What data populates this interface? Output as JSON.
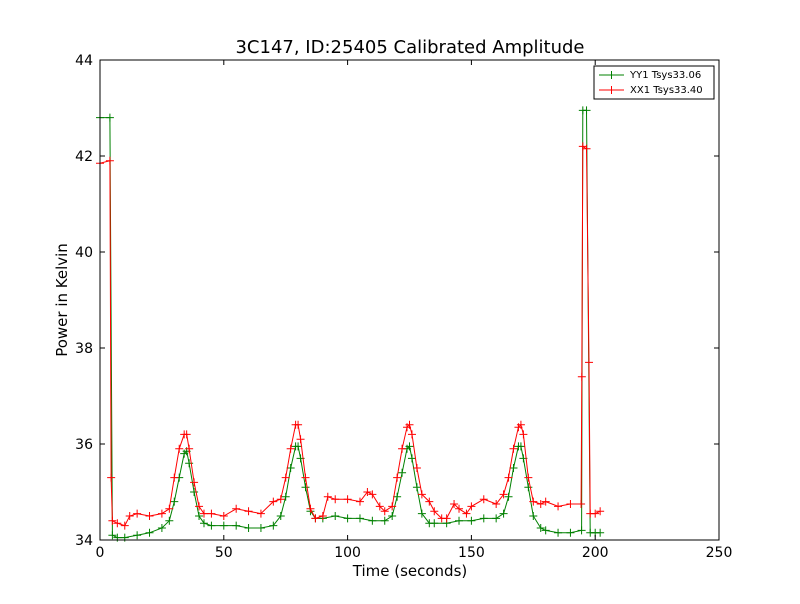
{
  "chart_data": {
    "type": "line",
    "title": "3C147, ID:25405 Calibrated Amplitude",
    "xlabel": "Time (seconds)",
    "ylabel": "Power in Kelvin",
    "xlim": [
      0,
      250
    ],
    "ylim": [
      34,
      44
    ],
    "xticks": [
      "0",
      "50",
      "100",
      "150",
      "200",
      "250"
    ],
    "yticks": [
      "34",
      "36",
      "38",
      "40",
      "42",
      "44"
    ],
    "grid": false,
    "legend_position": "top-right",
    "marker": "plus",
    "series": [
      {
        "name": "YY1 Tsys33.06",
        "color": "#008000",
        "x": [
          0,
          4,
          5,
          7,
          10,
          15,
          20,
          25,
          28,
          30,
          32,
          34,
          35,
          36,
          38,
          40,
          42,
          45,
          50,
          55,
          60,
          65,
          70,
          73,
          75,
          77,
          79,
          80,
          81,
          83,
          85,
          87,
          90,
          95,
          100,
          105,
          110,
          115,
          118,
          120,
          122,
          124,
          125,
          126,
          128,
          130,
          133,
          135,
          140,
          145,
          150,
          155,
          160,
          163,
          165,
          167,
          169,
          170,
          171,
          173,
          175,
          178,
          180,
          185,
          190,
          194.5,
          195,
          196.5,
          198,
          200,
          202
        ],
        "y": [
          42.8,
          42.8,
          34.1,
          34.05,
          34.05,
          34.1,
          34.15,
          34.25,
          34.4,
          34.8,
          35.3,
          35.8,
          35.85,
          35.6,
          35.0,
          34.5,
          34.35,
          34.3,
          34.3,
          34.3,
          34.25,
          34.25,
          34.3,
          34.5,
          34.9,
          35.5,
          35.95,
          35.95,
          35.7,
          35.1,
          34.6,
          34.45,
          34.45,
          34.5,
          34.45,
          34.45,
          34.4,
          34.4,
          34.5,
          34.9,
          35.4,
          35.9,
          35.95,
          35.7,
          35.1,
          34.55,
          34.35,
          34.35,
          34.35,
          34.4,
          34.4,
          34.45,
          34.45,
          34.55,
          34.9,
          35.5,
          35.95,
          35.95,
          35.7,
          35.1,
          34.5,
          34.25,
          34.2,
          34.15,
          34.15,
          34.2,
          42.95,
          42.95,
          34.15,
          34.15,
          34.15
        ]
      },
      {
        "name": "XX1 Tsys33.40",
        "color": "#ff0000",
        "x": [
          0,
          4,
          4.5,
          5,
          7,
          10,
          12,
          15,
          20,
          25,
          28,
          30,
          32,
          34,
          35,
          36,
          38,
          40,
          42,
          45,
          50,
          55,
          60,
          65,
          70,
          73,
          75,
          77,
          79,
          80,
          81,
          83,
          85,
          87,
          90,
          92,
          95,
          100,
          105,
          108,
          110,
          113,
          115,
          118,
          120,
          122,
          124,
          125,
          126,
          128,
          130,
          133,
          135,
          138,
          140,
          143,
          145,
          148,
          150,
          155,
          160,
          163,
          165,
          167,
          169,
          170,
          171,
          173,
          175,
          178,
          180,
          185,
          190,
          194.3,
          194.6,
          195,
          196.5,
          197.5,
          198,
          200,
          202
        ],
        "y": [
          41.85,
          41.9,
          35.3,
          34.4,
          34.35,
          34.3,
          34.5,
          34.55,
          34.5,
          34.55,
          34.65,
          35.3,
          35.9,
          36.2,
          36.2,
          35.9,
          35.2,
          34.7,
          34.55,
          34.55,
          34.5,
          34.65,
          34.6,
          34.55,
          34.8,
          34.85,
          35.3,
          35.9,
          36.4,
          36.4,
          36.1,
          35.3,
          34.65,
          34.45,
          34.5,
          34.9,
          34.85,
          34.85,
          34.8,
          35.0,
          34.95,
          34.7,
          34.6,
          34.7,
          35.3,
          35.9,
          36.35,
          36.4,
          36.2,
          35.5,
          34.95,
          34.8,
          34.6,
          34.45,
          34.45,
          34.75,
          34.65,
          34.55,
          34.7,
          34.85,
          34.75,
          34.95,
          35.3,
          35.9,
          36.35,
          36.4,
          36.2,
          35.3,
          34.8,
          34.75,
          34.8,
          34.7,
          34.75,
          34.75,
          37.4,
          42.2,
          42.15,
          37.7,
          34.55,
          34.55,
          34.6
        ]
      }
    ]
  }
}
